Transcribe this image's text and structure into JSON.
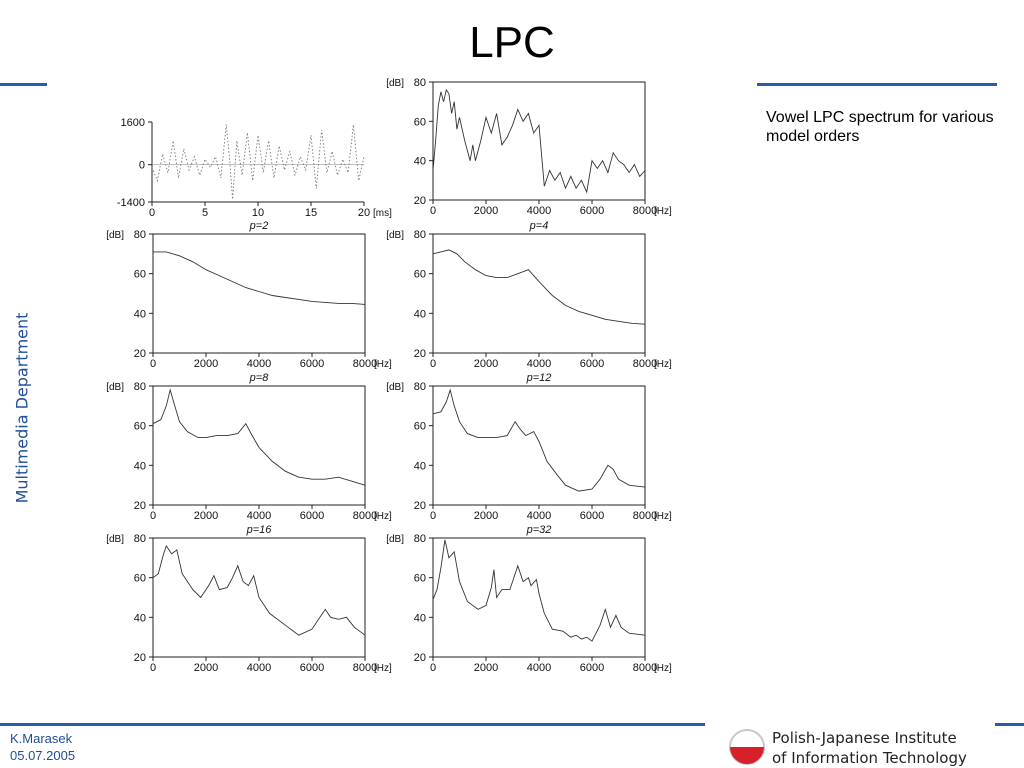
{
  "slide": {
    "title": "LPC",
    "side_label": "Multimedia Department",
    "caption_line1": "Vowel LPC spectrum for various",
    "caption_line2": "model orders",
    "author": "K.Marasek",
    "date": "05.07.2005",
    "institute_line1": "Polish-Japanese Institute",
    "institute_line2": "of Information Technology",
    "accent_color": "#2a5ca8"
  },
  "chart_data": [
    {
      "type": "line",
      "title": "",
      "xlabel": "[ms]",
      "ylabel": "",
      "xlim": [
        0,
        20
      ],
      "ylim": [
        -1400,
        1600
      ],
      "xticks": [
        0,
        5,
        10,
        15,
        20
      ],
      "yticks": [
        1600,
        0,
        -1400
      ],
      "xtick_labels": [
        "0",
        "5",
        "10",
        "15",
        "20"
      ],
      "ytick_labels": [
        "1600",
        "0",
        "-1400"
      ],
      "grid": false,
      "dotted": true,
      "series": [
        {
          "x": [
            0,
            0.5,
            1,
            1.5,
            2,
            2.5,
            3,
            3.5,
            4,
            4.5,
            5,
            5.5,
            6,
            6.5,
            7,
            7.3,
            7.6,
            8,
            8.5,
            9,
            9.5,
            10,
            10.5,
            11,
            11.5,
            12,
            12.5,
            13,
            13.5,
            14,
            14.5,
            15,
            15.5,
            16,
            16.5,
            17,
            17.5,
            18,
            18.5,
            19,
            19.5,
            20
          ],
          "y": [
            -100,
            -600,
            400,
            -300,
            900,
            -500,
            600,
            -200,
            300,
            -400,
            200,
            -100,
            300,
            -500,
            1500,
            300,
            -1300,
            900,
            -400,
            1200,
            -600,
            1100,
            -300,
            900,
            -500,
            700,
            -200,
            500,
            -400,
            300,
            -200,
            1100,
            -900,
            1300,
            -300,
            500,
            -400,
            200,
            -300,
            1500,
            -600,
            300
          ]
        }
      ]
    },
    {
      "type": "line",
      "title": "",
      "xlabel": "[Hz]",
      "ylabel": "[dB]",
      "xlim": [
        0,
        8000
      ],
      "ylim": [
        20,
        80
      ],
      "xticks": [
        0,
        2000,
        4000,
        6000,
        8000
      ],
      "yticks": [
        20,
        40,
        60,
        80
      ],
      "grid": false,
      "series": [
        {
          "x": [
            0,
            100,
            200,
            300,
            400,
            500,
            600,
            700,
            800,
            900,
            1000,
            1200,
            1400,
            1500,
            1600,
            1800,
            2000,
            2200,
            2400,
            2600,
            2800,
            3000,
            3200,
            3400,
            3600,
            3800,
            4000,
            4200,
            4400,
            4600,
            4800,
            5000,
            5200,
            5400,
            5600,
            5800,
            6000,
            6200,
            6400,
            6600,
            6800,
            7000,
            7200,
            7400,
            7600,
            7800,
            8000
          ],
          "y": [
            35,
            50,
            68,
            75,
            70,
            76,
            74,
            64,
            70,
            56,
            62,
            50,
            40,
            48,
            40,
            50,
            62,
            54,
            64,
            48,
            52,
            58,
            66,
            60,
            64,
            54,
            58,
            27,
            35,
            30,
            34,
            26,
            32,
            26,
            30,
            24,
            40,
            36,
            40,
            34,
            44,
            40,
            38,
            34,
            38,
            32,
            35
          ]
        }
      ]
    },
    {
      "type": "line",
      "title": "p=2",
      "xlabel": "[Hz]",
      "ylabel": "[dB]",
      "xlim": [
        0,
        8000
      ],
      "ylim": [
        20,
        80
      ],
      "xticks": [
        0,
        2000,
        4000,
        6000,
        8000
      ],
      "yticks": [
        20,
        40,
        60,
        80
      ],
      "grid": false,
      "series": [
        {
          "x": [
            0,
            500,
            1000,
            1500,
            2000,
            2500,
            3000,
            3500,
            4000,
            4500,
            5000,
            5500,
            6000,
            6500,
            7000,
            7500,
            8000
          ],
          "y": [
            71,
            71,
            69,
            66,
            62,
            59,
            56,
            53,
            51,
            49,
            48,
            47,
            46,
            45.5,
            45,
            45,
            44.5
          ]
        }
      ]
    },
    {
      "type": "line",
      "title": "p=4",
      "xlabel": "[Hz]",
      "ylabel": "[dB]",
      "xlim": [
        0,
        8000
      ],
      "ylim": [
        20,
        80
      ],
      "xticks": [
        0,
        2000,
        4000,
        6000,
        8000
      ],
      "yticks": [
        20,
        40,
        60,
        80
      ],
      "grid": false,
      "series": [
        {
          "x": [
            0,
            300,
            600,
            900,
            1200,
            1600,
            2000,
            2400,
            2800,
            3200,
            3600,
            4000,
            4500,
            5000,
            5500,
            6000,
            6500,
            7000,
            7500,
            8000
          ],
          "y": [
            70,
            71,
            72,
            70,
            66,
            62,
            59,
            58,
            58,
            60,
            62,
            56,
            49,
            44,
            41,
            39,
            37,
            36,
            35,
            34.5
          ]
        }
      ]
    },
    {
      "type": "line",
      "title": "p=8",
      "xlabel": "[Hz]",
      "ylabel": "[dB]",
      "xlim": [
        0,
        8000
      ],
      "ylim": [
        20,
        80
      ],
      "xticks": [
        0,
        2000,
        4000,
        6000,
        8000
      ],
      "yticks": [
        20,
        40,
        60,
        80
      ],
      "grid": false,
      "series": [
        {
          "x": [
            0,
            300,
            500,
            650,
            800,
            1000,
            1300,
            1700,
            2000,
            2400,
            2800,
            3200,
            3500,
            3700,
            4000,
            4500,
            5000,
            5500,
            6000,
            6500,
            7000,
            7500,
            8000
          ],
          "y": [
            61,
            63,
            70,
            78,
            71,
            62,
            57,
            54,
            54,
            55,
            55,
            56,
            61,
            56,
            49,
            42,
            37,
            34,
            33,
            33,
            34,
            32,
            30
          ]
        }
      ]
    },
    {
      "type": "line",
      "title": "p=12",
      "xlabel": "[Hz]",
      "ylabel": "[dB]",
      "xlim": [
        0,
        8000
      ],
      "ylim": [
        20,
        80
      ],
      "xticks": [
        0,
        2000,
        4000,
        6000,
        8000
      ],
      "yticks": [
        20,
        40,
        60,
        80
      ],
      "grid": false,
      "series": [
        {
          "x": [
            0,
            300,
            500,
            650,
            800,
            1000,
            1300,
            1700,
            2000,
            2400,
            2800,
            3100,
            3300,
            3500,
            3800,
            4000,
            4300,
            4700,
            5000,
            5500,
            6000,
            6300,
            6600,
            6800,
            7000,
            7400,
            8000
          ],
          "y": [
            66,
            67,
            72,
            78,
            70,
            62,
            56,
            54,
            54,
            54,
            55,
            62,
            58,
            55,
            57,
            52,
            42,
            35,
            30,
            27,
            28,
            33,
            40,
            38,
            33,
            30,
            29
          ]
        }
      ]
    },
    {
      "type": "line",
      "title": "p=16",
      "xlabel": "[Hz]",
      "ylabel": "[dB]",
      "xlim": [
        0,
        8000
      ],
      "ylim": [
        20,
        80
      ],
      "xticks": [
        0,
        2000,
        4000,
        6000,
        8000
      ],
      "yticks": [
        20,
        40,
        60,
        80
      ],
      "grid": false,
      "series": [
        {
          "x": [
            0,
            200,
            400,
            500,
            700,
            900,
            1100,
            1500,
            1800,
            2100,
            2300,
            2500,
            2800,
            3000,
            3200,
            3400,
            3600,
            3800,
            4000,
            4400,
            5000,
            5500,
            6000,
            6300,
            6500,
            6700,
            7000,
            7300,
            7600,
            8000
          ],
          "y": [
            60,
            62,
            72,
            76,
            72,
            74,
            62,
            54,
            50,
            56,
            61,
            54,
            55,
            60,
            66,
            58,
            56,
            61,
            50,
            42,
            36,
            31,
            34,
            40,
            44,
            40,
            39,
            40,
            35,
            31
          ]
        }
      ]
    },
    {
      "type": "line",
      "title": "p=32",
      "xlabel": "[Hz]",
      "ylabel": "[dB]",
      "xlim": [
        0,
        8000
      ],
      "ylim": [
        20,
        80
      ],
      "xticks": [
        0,
        2000,
        4000,
        6000,
        8000
      ],
      "yticks": [
        20,
        40,
        60,
        80
      ],
      "grid": false,
      "series": [
        {
          "x": [
            0,
            150,
            300,
            450,
            500,
            600,
            800,
            1000,
            1300,
            1700,
            2000,
            2200,
            2300,
            2400,
            2600,
            2900,
            3200,
            3400,
            3600,
            3700,
            3900,
            4000,
            4200,
            4500,
            4900,
            5200,
            5400,
            5600,
            5800,
            6000,
            6300,
            6500,
            6700,
            6900,
            7100,
            7400,
            8000
          ],
          "y": [
            49,
            54,
            65,
            79,
            76,
            70,
            73,
            58,
            48,
            44,
            46,
            55,
            64,
            50,
            54,
            54,
            66,
            58,
            60,
            56,
            59,
            52,
            42,
            34,
            33,
            30,
            31,
            29,
            30,
            28,
            36,
            44,
            35,
            41,
            35,
            32,
            31
          ]
        }
      ]
    }
  ]
}
